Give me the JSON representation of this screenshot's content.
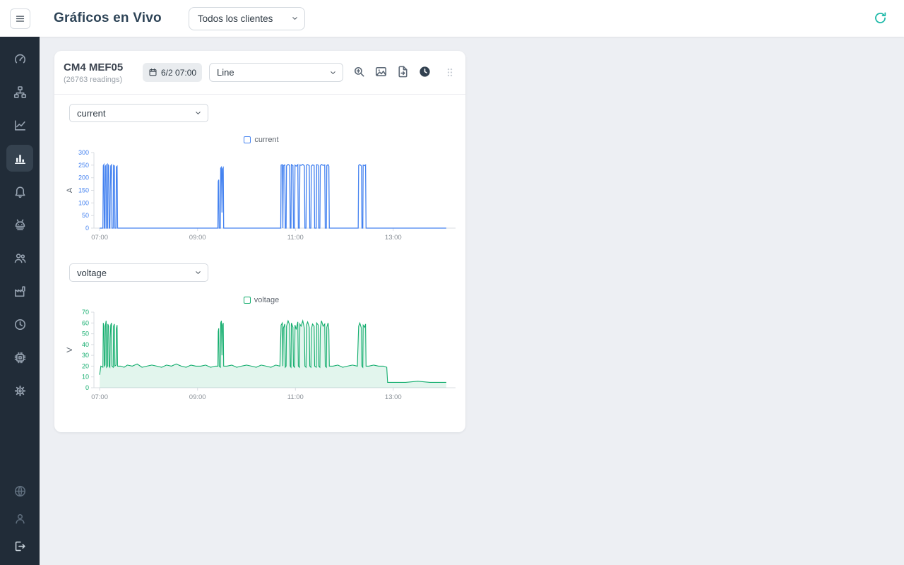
{
  "colors": {
    "accent": "#1db9a8",
    "sidebar_bg": "#212c38",
    "content_bg": "#edeff3",
    "current_series": "#4482f0",
    "voltage_series": "#12ad6d"
  },
  "header": {
    "title": "Gráficos en Vivo",
    "client_select": {
      "value": "Todos los clientes"
    }
  },
  "sidebar": {
    "active_index": 3,
    "top_icons": [
      "gauge",
      "sitemap",
      "chart-line",
      "chart-bars",
      "bell",
      "robot",
      "users",
      "factory",
      "clock",
      "chip",
      "gear"
    ],
    "bottom_icons": [
      "globe",
      "user",
      "logout"
    ]
  },
  "card": {
    "title": "CM4 MEF05",
    "readings": "(26763 readings)",
    "date_button": {
      "label": "6/2 07:00"
    },
    "chart_type_select": {
      "value": "Line"
    },
    "metric_selects": [
      {
        "value": "current"
      },
      {
        "value": "voltage"
      }
    ]
  },
  "chart_data": [
    {
      "type": "line",
      "legend": "current",
      "ylabel": "A",
      "color": "#4482f0",
      "ylim": [
        0,
        300
      ],
      "yticks": [
        0,
        50,
        100,
        150,
        200,
        250,
        300
      ],
      "xlim": [
        -7,
        432
      ],
      "x_unit": "minutes since 07:00",
      "xticks": [
        {
          "t": 0,
          "label": "07:00"
        },
        {
          "t": 120,
          "label": "09:00"
        },
        {
          "t": 240,
          "label": "11:00"
        },
        {
          "t": 360,
          "label": "13:00"
        }
      ],
      "fill": false,
      "line_width": 1.3,
      "points": [
        [
          0,
          0
        ],
        [
          4,
          0
        ],
        [
          4.5,
          248
        ],
        [
          5.2,
          252
        ],
        [
          5.8,
          0
        ],
        [
          6.6,
          0
        ],
        [
          7.1,
          246
        ],
        [
          8,
          250
        ],
        [
          8.6,
          0
        ],
        [
          9.6,
          0
        ],
        [
          10.1,
          253
        ],
        [
          11,
          248
        ],
        [
          11.6,
          0
        ],
        [
          12.6,
          0
        ],
        [
          13,
          145
        ],
        [
          13.6,
          247
        ],
        [
          14.5,
          251
        ],
        [
          15.1,
          0
        ],
        [
          16.6,
          0
        ],
        [
          17.1,
          249
        ],
        [
          18,
          247
        ],
        [
          18.6,
          0
        ],
        [
          20,
          0
        ],
        [
          20.5,
          243
        ],
        [
          21.4,
          246
        ],
        [
          22,
          0
        ],
        [
          145,
          0
        ],
        [
          145.4,
          185
        ],
        [
          146,
          192
        ],
        [
          146.5,
          0
        ],
        [
          148,
          0
        ],
        [
          148.4,
          238
        ],
        [
          149.3,
          242
        ],
        [
          150,
          62
        ],
        [
          150.6,
          235
        ],
        [
          151.5,
          240
        ],
        [
          152.1,
          0
        ],
        [
          222,
          0
        ],
        [
          222.5,
          250
        ],
        [
          224,
          252
        ],
        [
          224.6,
          0
        ],
        [
          225.2,
          248
        ],
        [
          227,
          251
        ],
        [
          227.6,
          0
        ],
        [
          228.6,
          0
        ],
        [
          229.1,
          247
        ],
        [
          231,
          253
        ],
        [
          233,
          249
        ],
        [
          233.6,
          0
        ],
        [
          234.6,
          0
        ],
        [
          235.1,
          252
        ],
        [
          237,
          248
        ],
        [
          237.6,
          0
        ],
        [
          239,
          0
        ],
        [
          239.5,
          250
        ],
        [
          241,
          246
        ],
        [
          243,
          252
        ],
        [
          243.6,
          0
        ],
        [
          245,
          0
        ],
        [
          245.5,
          251
        ],
        [
          247,
          249
        ],
        [
          249,
          253
        ],
        [
          251,
          247
        ],
        [
          251.6,
          0
        ],
        [
          253,
          0
        ],
        [
          253.5,
          250
        ],
        [
          255,
          252
        ],
        [
          257,
          248
        ],
        [
          257.6,
          0
        ],
        [
          259,
          0
        ],
        [
          259.5,
          246
        ],
        [
          261,
          251
        ],
        [
          263,
          249
        ],
        [
          263.6,
          0
        ],
        [
          265.6,
          0
        ],
        [
          266.1,
          252
        ],
        [
          268,
          250
        ],
        [
          268.6,
          0
        ],
        [
          270,
          0
        ],
        [
          270.5,
          247
        ],
        [
          272,
          253
        ],
        [
          274,
          249
        ],
        [
          276,
          251
        ],
        [
          276.6,
          0
        ],
        [
          278,
          0
        ],
        [
          278.5,
          248
        ],
        [
          280,
          252
        ],
        [
          281,
          246
        ],
        [
          281.6,
          0
        ],
        [
          317,
          0
        ],
        [
          317.5,
          249
        ],
        [
          319,
          252
        ],
        [
          321,
          247
        ],
        [
          321.6,
          0
        ],
        [
          322.6,
          0
        ],
        [
          323.1,
          250
        ],
        [
          325,
          248
        ],
        [
          326,
          251
        ],
        [
          326.6,
          0
        ],
        [
          425,
          0
        ]
      ]
    },
    {
      "type": "line",
      "legend": "voltage",
      "ylabel": "V",
      "color": "#12ad6d",
      "ylim": [
        0,
        70
      ],
      "yticks": [
        0,
        10,
        20,
        30,
        40,
        50,
        60,
        70
      ],
      "xlim": [
        -7,
        432
      ],
      "x_unit": "minutes since 07:00",
      "xticks": [
        {
          "t": 0,
          "label": "07:00"
        },
        {
          "t": 120,
          "label": "09:00"
        },
        {
          "t": 240,
          "label": "11:00"
        },
        {
          "t": 360,
          "label": "13:00"
        }
      ],
      "fill": true,
      "line_width": 1.1,
      "points": [
        [
          0,
          12
        ],
        [
          1.5,
          20
        ],
        [
          4,
          19
        ],
        [
          4.5,
          60
        ],
        [
          5.2,
          57
        ],
        [
          5.8,
          20
        ],
        [
          6.6,
          21
        ],
        [
          7.1,
          58
        ],
        [
          8,
          62
        ],
        [
          8.6,
          19
        ],
        [
          9.6,
          20
        ],
        [
          10.1,
          59
        ],
        [
          11,
          57
        ],
        [
          11.6,
          20
        ],
        [
          12.6,
          19
        ],
        [
          13,
          46
        ],
        [
          13.6,
          58
        ],
        [
          14.5,
          60
        ],
        [
          15.1,
          20
        ],
        [
          16.6,
          19
        ],
        [
          17.1,
          57
        ],
        [
          18,
          59
        ],
        [
          18.6,
          20
        ],
        [
          20,
          21
        ],
        [
          20.5,
          55
        ],
        [
          21.4,
          58
        ],
        [
          22,
          20
        ],
        [
          26,
          20
        ],
        [
          30,
          19
        ],
        [
          34,
          21
        ],
        [
          40,
          20
        ],
        [
          46,
          22
        ],
        [
          52,
          19
        ],
        [
          58,
          20
        ],
        [
          64,
          21
        ],
        [
          70,
          20
        ],
        [
          76,
          19
        ],
        [
          82,
          21
        ],
        [
          88,
          20
        ],
        [
          94,
          22
        ],
        [
          100,
          20
        ],
        [
          106,
          19
        ],
        [
          112,
          21
        ],
        [
          118,
          20
        ],
        [
          124,
          20
        ],
        [
          130,
          21
        ],
        [
          136,
          19
        ],
        [
          142,
          20
        ],
        [
          145,
          20
        ],
        [
          145.4,
          52
        ],
        [
          146,
          55
        ],
        [
          146.5,
          20
        ],
        [
          148,
          19
        ],
        [
          148.4,
          60
        ],
        [
          149.3,
          62
        ],
        [
          150,
          30
        ],
        [
          150.6,
          58
        ],
        [
          151.5,
          60
        ],
        [
          152.1,
          20
        ],
        [
          156,
          20
        ],
        [
          162,
          21
        ],
        [
          168,
          19
        ],
        [
          174,
          20
        ],
        [
          180,
          21
        ],
        [
          186,
          20
        ],
        [
          192,
          19
        ],
        [
          198,
          21
        ],
        [
          204,
          20
        ],
        [
          210,
          19
        ],
        [
          216,
          21
        ],
        [
          221,
          20
        ],
        [
          222.5,
          58
        ],
        [
          224,
          60
        ],
        [
          224.6,
          20
        ],
        [
          225.2,
          55
        ],
        [
          227,
          59
        ],
        [
          227.6,
          19
        ],
        [
          228.6,
          20
        ],
        [
          229.1,
          57
        ],
        [
          231,
          62
        ],
        [
          233,
          58
        ],
        [
          233.6,
          20
        ],
        [
          234.6,
          19
        ],
        [
          235.1,
          60
        ],
        [
          237,
          56
        ],
        [
          237.6,
          20
        ],
        [
          239,
          19
        ],
        [
          239.5,
          58
        ],
        [
          241,
          54
        ],
        [
          243,
          61
        ],
        [
          243.6,
          20
        ],
        [
          245,
          19
        ],
        [
          245.5,
          59
        ],
        [
          247,
          57
        ],
        [
          249,
          62
        ],
        [
          251,
          55
        ],
        [
          251.6,
          20
        ],
        [
          253,
          19
        ],
        [
          253.5,
          58
        ],
        [
          255,
          61
        ],
        [
          257,
          56
        ],
        [
          257.6,
          20
        ],
        [
          259,
          19
        ],
        [
          259.5,
          54
        ],
        [
          261,
          59
        ],
        [
          263,
          57
        ],
        [
          263.6,
          20
        ],
        [
          265.6,
          19
        ],
        [
          266.1,
          60
        ],
        [
          268,
          58
        ],
        [
          268.6,
          20
        ],
        [
          270,
          19
        ],
        [
          270.5,
          55
        ],
        [
          272,
          62
        ],
        [
          274,
          57
        ],
        [
          276,
          59
        ],
        [
          276.6,
          20
        ],
        [
          278,
          19
        ],
        [
          278.5,
          56
        ],
        [
          280,
          60
        ],
        [
          281,
          54
        ],
        [
          281.6,
          20
        ],
        [
          286,
          20
        ],
        [
          292,
          21
        ],
        [
          298,
          19
        ],
        [
          304,
          20
        ],
        [
          310,
          21
        ],
        [
          316,
          20
        ],
        [
          317.5,
          57
        ],
        [
          319,
          60
        ],
        [
          321,
          55
        ],
        [
          321.6,
          20
        ],
        [
          322.6,
          19
        ],
        [
          323.1,
          58
        ],
        [
          325,
          56
        ],
        [
          326,
          59
        ],
        [
          326.6,
          20
        ],
        [
          330,
          20
        ],
        [
          336,
          21
        ],
        [
          342,
          20
        ],
        [
          348,
          20
        ],
        [
          352,
          19
        ],
        [
          353,
          5
        ],
        [
          360,
          5
        ],
        [
          375,
          5
        ],
        [
          390,
          6
        ],
        [
          405,
          5
        ],
        [
          425,
          5
        ]
      ]
    }
  ]
}
